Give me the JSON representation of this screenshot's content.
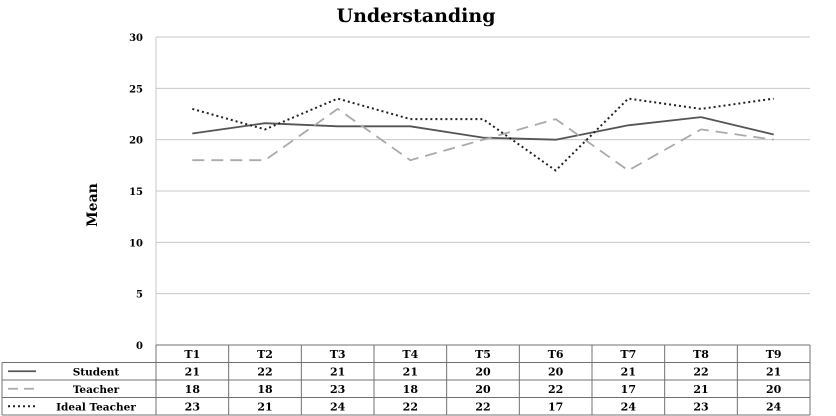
{
  "chart_data": {
    "type": "line",
    "title": "Understanding",
    "xlabel": "",
    "ylabel": "Mean",
    "ylim": [
      0,
      30
    ],
    "yticks": [
      0,
      5,
      10,
      15,
      20,
      25,
      30
    ],
    "grid": true,
    "legend": "bottom-left (data table)",
    "categories": [
      "T1",
      "T2",
      "T3",
      "T4",
      "T5",
      "T6",
      "T7",
      "T8",
      "T9"
    ],
    "series": [
      {
        "name": "Student",
        "values": [
          20.6,
          21.6,
          21.3,
          21.3,
          20.2,
          20.0,
          21.4,
          22.2,
          20.5
        ],
        "table_values": [
          "21",
          "22",
          "21",
          "21",
          "20",
          "20",
          "21",
          "22",
          "21"
        ],
        "style": "solid",
        "color": "#555555"
      },
      {
        "name": "Teacher",
        "values": [
          18,
          18,
          23,
          18,
          20,
          22,
          17,
          21,
          20
        ],
        "table_values": [
          "18",
          "18",
          "23",
          "18",
          "20",
          "22",
          "17",
          "21",
          "20"
        ],
        "style": "dashed",
        "color": "#aaaaaa"
      },
      {
        "name": "Ideal Teacher",
        "values": [
          23,
          21,
          24,
          22,
          22,
          17,
          24,
          23,
          24
        ],
        "table_values": [
          "23",
          "21",
          "24",
          "22",
          "22",
          "17",
          "24",
          "23",
          "24"
        ],
        "style": "dotted",
        "color": "#222222"
      }
    ]
  }
}
